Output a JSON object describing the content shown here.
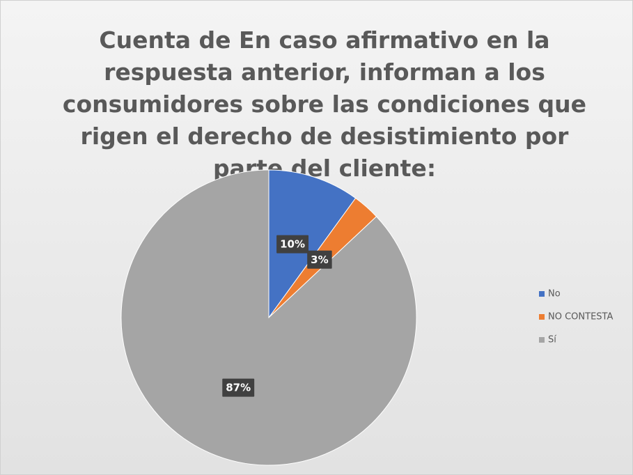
{
  "chart_data": {
    "type": "pie",
    "title": "Cuenta de En caso afirmativo en la respuesta anterior, informan a los consumidores sobre las condiciones que rigen el derecho de desistimiento por parte del cliente:",
    "categories": [
      "No",
      "NO CONTESTA",
      "Sí"
    ],
    "values": [
      10,
      3,
      87
    ],
    "value_labels": [
      "10%",
      "3%",
      "87%"
    ],
    "colors": [
      "#4472c4",
      "#ed7d31",
      "#a5a5a5"
    ],
    "legend": "right"
  }
}
